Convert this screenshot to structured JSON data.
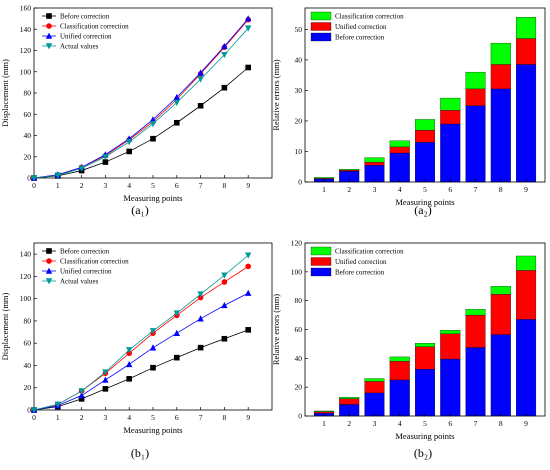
{
  "panels": [
    {
      "id": "a1",
      "caption": "(a₁)",
      "chart_data": {
        "type": "line",
        "x": [
          0,
          1,
          2,
          3,
          4,
          5,
          6,
          7,
          8,
          9
        ],
        "xlabel": "Measuring points",
        "ylabel": "Displacement (mm)",
        "xlim": [
          0,
          10
        ],
        "ylim": [
          0,
          160
        ],
        "xticks": [
          0,
          1,
          2,
          3,
          4,
          5,
          6,
          7,
          8,
          9
        ],
        "yticks": [
          0,
          20,
          40,
          60,
          80,
          100,
          120,
          140,
          160
        ],
        "legend_position": "top-left",
        "series": [
          {
            "name": "Before correction",
            "marker": "square",
            "color": "#000000",
            "values": [
              0,
              2,
              7,
              15,
              25,
              37,
              52,
              68,
              85,
              104
            ]
          },
          {
            "name": "Classification correction",
            "marker": "circle",
            "color": "#ff0000",
            "values": [
              0,
              3,
              10,
              21,
              36,
              53,
              74,
              98,
              123,
              149
            ]
          },
          {
            "name": "Unified correction",
            "marker": "triangle-up",
            "color": "#0000ff",
            "values": [
              0,
              3,
              10,
              22,
              37,
              55,
              76,
              99,
              124,
              150
            ]
          },
          {
            "name": "Actual values",
            "marker": "triangle-down",
            "color": "#009999",
            "values": [
              0,
              2.5,
              9,
              20,
              34,
              51,
              71,
              93,
              116,
              141
            ]
          }
        ]
      }
    },
    {
      "id": "a2",
      "caption": "(a₂)",
      "chart_data": {
        "type": "bar",
        "stacked": true,
        "categories": [
          "1",
          "2",
          "3",
          "4",
          "5",
          "6",
          "7",
          "8",
          "9"
        ],
        "xlabel": "Measuring points",
        "ylabel": "Relative errors (mm)",
        "ylim": [
          0,
          57
        ],
        "yticks": [
          0,
          10,
          20,
          30,
          40,
          50
        ],
        "legend_position": "top-left",
        "series": [
          {
            "name": "Before correction",
            "color": "#0000ff",
            "values": [
              1,
              3.5,
              5.5,
              9.5,
              13,
              19,
              25,
              30.5,
              38.5
            ]
          },
          {
            "name": "Unified correction",
            "color": "#ff0000",
            "values": [
              0.2,
              0.4,
              1,
              2,
              4,
              4.5,
              5.5,
              8,
              8.5
            ]
          },
          {
            "name": "Classification correction",
            "color": "#00ff00",
            "values": [
              0.3,
              0.3,
              1.5,
              2,
              3.5,
              4,
              5.5,
              7,
              7
            ]
          }
        ]
      }
    },
    {
      "id": "b1",
      "caption": "(b₁)",
      "chart_data": {
        "type": "line",
        "x": [
          0,
          1,
          2,
          3,
          4,
          5,
          6,
          7,
          8,
          9
        ],
        "xlabel": "Measuring points",
        "ylabel": "Displacement (mm)",
        "xlim": [
          0,
          10
        ],
        "ylim": [
          0,
          150
        ],
        "xticks": [
          0,
          1,
          2,
          3,
          4,
          5,
          6,
          7,
          8,
          9
        ],
        "yticks": [
          0,
          20,
          40,
          60,
          80,
          100,
          120,
          140
        ],
        "legend_position": "top-left",
        "series": [
          {
            "name": "Before correction",
            "marker": "square",
            "color": "#000000",
            "values": [
              0,
              3,
              10,
              19,
              28,
              38,
              47,
              56,
              64,
              72
            ]
          },
          {
            "name": "Classification correction",
            "marker": "circle",
            "color": "#ff0000",
            "values": [
              0,
              5,
              17,
              33,
              51,
              69,
              85,
              101,
              115,
              129
            ]
          },
          {
            "name": "Unified correction",
            "marker": "triangle-up",
            "color": "#0000ff",
            "values": [
              0,
              4,
              13,
              27,
              41,
              56,
              69,
              82,
              94,
              105
            ]
          },
          {
            "name": "Actual values",
            "marker": "triangle-down",
            "color": "#009999",
            "values": [
              0,
              5,
              17,
              34,
              54,
              71,
              87,
              104,
              121,
              139
            ]
          }
        ]
      }
    },
    {
      "id": "b2",
      "caption": "(b₂)",
      "chart_data": {
        "type": "bar",
        "stacked": true,
        "categories": [
          "1",
          "2",
          "3",
          "4",
          "5",
          "6",
          "7",
          "8",
          "9"
        ],
        "xlabel": "Measuring points",
        "ylabel": "Relative errors (mm)",
        "ylim": [
          0,
          120
        ],
        "yticks": [
          0,
          20,
          40,
          60,
          80,
          100,
          120
        ],
        "legend_position": "top-left",
        "series": [
          {
            "name": "Before correction",
            "color": "#0000ff",
            "values": [
              2,
              8,
              16,
              25,
              32.5,
              39.5,
              47.5,
              56.5,
              67
            ]
          },
          {
            "name": "Unified correction",
            "color": "#ff0000",
            "values": [
              1,
              4,
              8,
              13,
              15.5,
              17.5,
              22.5,
              28,
              34
            ]
          },
          {
            "name": "Classification correction",
            "color": "#00ff00",
            "values": [
              0.5,
              1,
              2,
              3,
              2.5,
              2.5,
              4,
              5.5,
              10
            ]
          }
        ]
      }
    }
  ]
}
